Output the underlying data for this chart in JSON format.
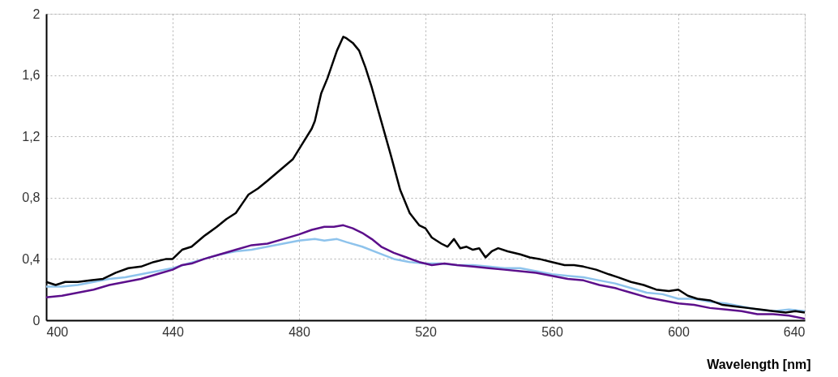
{
  "chart_data": {
    "type": "line",
    "xlabel": "Wavelength [nm]",
    "xlim": [
      400,
      640
    ],
    "xticks": [
      400,
      440,
      480,
      520,
      560,
      600,
      640
    ],
    "ylim": [
      0,
      2
    ],
    "yticks": [
      0,
      {
        "value": 0.4,
        "label": "0,4"
      },
      {
        "value": 0.8,
        "label": "0,8"
      },
      {
        "value": 1.2,
        "label": "1,2"
      },
      {
        "value": 1.6,
        "label": "1,6"
      },
      2
    ],
    "grid": true,
    "marker": "none",
    "line_style": "solid",
    "series": [
      {
        "color": "#8ec3ec",
        "x": [
          400,
          405,
          410,
          415,
          420,
          425,
          430,
          435,
          440,
          445,
          450,
          455,
          460,
          465,
          470,
          475,
          480,
          485,
          488,
          492,
          495,
          500,
          505,
          510,
          515,
          520,
          525,
          530,
          535,
          540,
          545,
          550,
          555,
          560,
          565,
          570,
          575,
          580,
          585,
          590,
          595,
          600,
          605,
          610,
          615,
          620,
          625,
          630,
          635,
          640
        ],
        "values": [
          0.22,
          0.22,
          0.23,
          0.25,
          0.27,
          0.28,
          0.3,
          0.32,
          0.34,
          0.37,
          0.4,
          0.43,
          0.45,
          0.46,
          0.48,
          0.5,
          0.52,
          0.53,
          0.52,
          0.53,
          0.51,
          0.48,
          0.44,
          0.4,
          0.38,
          0.37,
          0.37,
          0.36,
          0.36,
          0.35,
          0.34,
          0.34,
          0.32,
          0.3,
          0.29,
          0.28,
          0.26,
          0.24,
          0.21,
          0.18,
          0.17,
          0.14,
          0.14,
          0.12,
          0.11,
          0.09,
          0.07,
          0.06,
          0.07,
          0.06
        ]
      },
      {
        "color": "#5c0f8b",
        "x": [
          400,
          405,
          410,
          415,
          420,
          425,
          430,
          435,
          440,
          443,
          446,
          450,
          455,
          460,
          465,
          470,
          475,
          480,
          484,
          488,
          491,
          494,
          497,
          500,
          503,
          506,
          510,
          514,
          518,
          522,
          526,
          530,
          535,
          540,
          545,
          550,
          555,
          560,
          565,
          570,
          575,
          580,
          585,
          590,
          595,
          600,
          605,
          610,
          615,
          620,
          625,
          630,
          635,
          640
        ],
        "values": [
          0.15,
          0.16,
          0.18,
          0.2,
          0.23,
          0.25,
          0.27,
          0.3,
          0.33,
          0.36,
          0.37,
          0.4,
          0.43,
          0.46,
          0.49,
          0.5,
          0.53,
          0.56,
          0.59,
          0.61,
          0.61,
          0.62,
          0.6,
          0.57,
          0.53,
          0.48,
          0.44,
          0.41,
          0.38,
          0.36,
          0.37,
          0.36,
          0.35,
          0.34,
          0.33,
          0.32,
          0.31,
          0.29,
          0.27,
          0.26,
          0.23,
          0.21,
          0.18,
          0.15,
          0.13,
          0.11,
          0.1,
          0.08,
          0.07,
          0.06,
          0.04,
          0.04,
          0.03,
          0.01
        ]
      },
      {
        "color": "#000000",
        "x": [
          400,
          403,
          406,
          410,
          414,
          418,
          422,
          426,
          430,
          434,
          438,
          440,
          443,
          446,
          450,
          454,
          457,
          460,
          462,
          464,
          467,
          470,
          474,
          478,
          481,
          484,
          485,
          487,
          489,
          491,
          492,
          494,
          495,
          497,
          499,
          501,
          503,
          506,
          509,
          512,
          515,
          518,
          520,
          522,
          525,
          527,
          529,
          531,
          533,
          535,
          537,
          539,
          541,
          543,
          546,
          550,
          553,
          556,
          560,
          564,
          567,
          570,
          574,
          578,
          581,
          585,
          589,
          593,
          597,
          600,
          603,
          606,
          610,
          614,
          618,
          622,
          626,
          630,
          634,
          637,
          640
        ],
        "values": [
          0.25,
          0.23,
          0.25,
          0.25,
          0.26,
          0.27,
          0.31,
          0.34,
          0.35,
          0.38,
          0.4,
          0.4,
          0.46,
          0.48,
          0.55,
          0.61,
          0.66,
          0.7,
          0.76,
          0.82,
          0.86,
          0.91,
          0.98,
          1.05,
          1.15,
          1.25,
          1.3,
          1.48,
          1.58,
          1.7,
          1.76,
          1.85,
          1.84,
          1.81,
          1.76,
          1.65,
          1.52,
          1.3,
          1.08,
          0.85,
          0.7,
          0.62,
          0.6,
          0.54,
          0.5,
          0.48,
          0.53,
          0.47,
          0.48,
          0.46,
          0.47,
          0.41,
          0.45,
          0.47,
          0.45,
          0.43,
          0.41,
          0.4,
          0.38,
          0.36,
          0.36,
          0.35,
          0.33,
          0.3,
          0.28,
          0.25,
          0.23,
          0.2,
          0.19,
          0.2,
          0.16,
          0.14,
          0.13,
          0.1,
          0.09,
          0.08,
          0.07,
          0.06,
          0.05,
          0.06,
          0.05
        ]
      }
    ]
  }
}
